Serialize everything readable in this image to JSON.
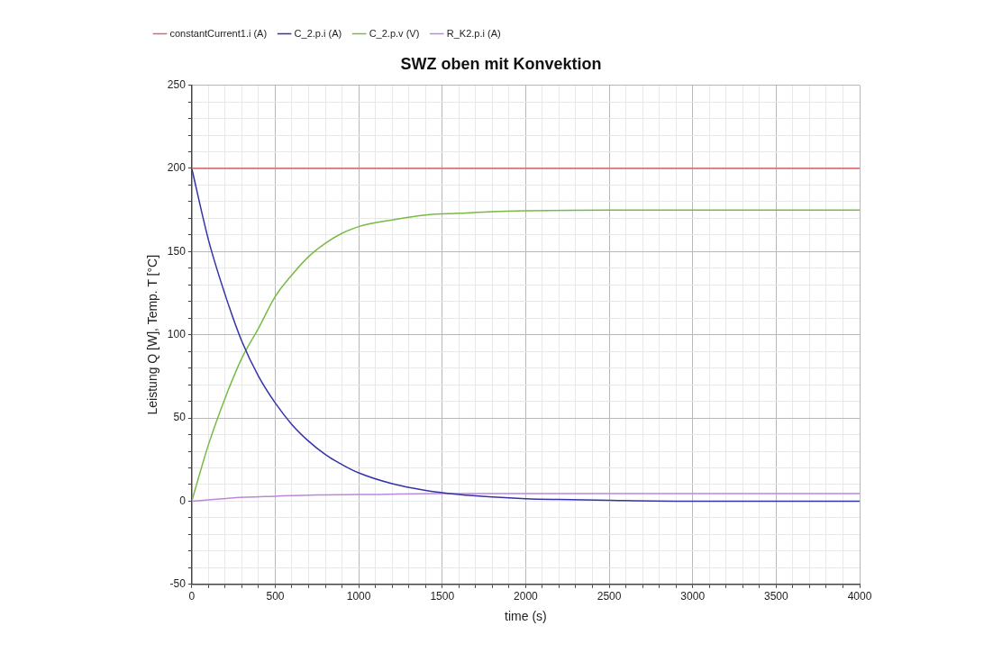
{
  "chart_data": {
    "type": "line",
    "title": "SWZ oben mit Konvektion",
    "xlabel": "time (s)",
    "ylabel": "Leistung Q [W], Temp. T [°C]",
    "legend": "top",
    "grid": true,
    "marker": "none",
    "line_style": "solid",
    "xlim": [
      0,
      4000
    ],
    "ylim": [
      -50,
      250
    ],
    "xticks": [
      0,
      {
        "value": 100,
        "label": null
      },
      {
        "value": 200,
        "label": null
      },
      {
        "value": 300,
        "label": null
      },
      {
        "value": 400,
        "label": null
      },
      500,
      {
        "value": 600,
        "label": null
      },
      {
        "value": 700,
        "label": null
      },
      {
        "value": 800,
        "label": null
      },
      {
        "value": 900,
        "label": null
      },
      1000,
      {
        "value": 1100,
        "label": null
      },
      {
        "value": 1200,
        "label": null
      },
      {
        "value": 1300,
        "label": null
      },
      {
        "value": 1400,
        "label": null
      },
      1500,
      {
        "value": 1600,
        "label": null
      },
      {
        "value": 1700,
        "label": null
      },
      {
        "value": 1800,
        "label": null
      },
      {
        "value": 1900,
        "label": null
      },
      2000,
      {
        "value": 2100,
        "label": null
      },
      {
        "value": 2200,
        "label": null
      },
      {
        "value": 2300,
        "label": null
      },
      {
        "value": 2400,
        "label": null
      },
      2500,
      {
        "value": 2600,
        "label": null
      },
      {
        "value": 2700,
        "label": null
      },
      {
        "value": 2800,
        "label": null
      },
      {
        "value": 2900,
        "label": null
      },
      3000,
      {
        "value": 3100,
        "label": null
      },
      {
        "value": 3200,
        "label": null
      },
      {
        "value": 3300,
        "label": null
      },
      {
        "value": 3400,
        "label": null
      },
      3500,
      {
        "value": 3600,
        "label": null
      },
      {
        "value": 3700,
        "label": null
      },
      {
        "value": 3800,
        "label": null
      },
      {
        "value": 3900,
        "label": null
      },
      4000
    ],
    "yticks": [
      -50,
      {
        "value": -40,
        "label": null
      },
      {
        "value": -30,
        "label": null
      },
      {
        "value": -20,
        "label": null
      },
      {
        "value": -10,
        "label": null
      },
      0,
      {
        "value": 10,
        "label": null
      },
      {
        "value": 20,
        "label": null
      },
      {
        "value": 30,
        "label": null
      },
      {
        "value": 40,
        "label": null
      },
      50,
      {
        "value": 60,
        "label": null
      },
      {
        "value": 70,
        "label": null
      },
      {
        "value": 80,
        "label": null
      },
      {
        "value": 90,
        "label": null
      },
      100,
      {
        "value": 110,
        "label": null
      },
      {
        "value": 120,
        "label": null
      },
      {
        "value": 130,
        "label": null
      },
      {
        "value": 140,
        "label": null
      },
      150,
      {
        "value": 160,
        "label": null
      },
      {
        "value": 170,
        "label": null
      },
      {
        "value": 180,
        "label": null
      },
      {
        "value": 190,
        "label": null
      },
      200,
      {
        "value": 210,
        "label": null
      },
      {
        "value": 220,
        "label": null
      },
      {
        "value": 230,
        "label": null
      },
      {
        "value": 240,
        "label": null
      },
      250
    ],
    "series": [
      {
        "name": "constantCurrent1.i (A)",
        "color": "#e06666",
        "x": [
          0,
          4000
        ],
        "values": [
          200,
          200
        ]
      },
      {
        "name": "C_2.p.i (A)",
        "color": "#3333aa",
        "x": [
          0,
          100,
          200,
          300,
          400,
          500,
          600,
          700,
          800,
          900,
          1000,
          1200,
          1400,
          1600,
          1800,
          2000,
          2200,
          2500,
          3000,
          4000
        ],
        "values": [
          200,
          157,
          124,
          96,
          75,
          59,
          46,
          36,
          28,
          22,
          17,
          10.5,
          6.5,
          4,
          2.5,
          1.5,
          1,
          0.5,
          0,
          0
        ]
      },
      {
        "name": "C_2.p.v (V)",
        "color": "#77bb44",
        "x": [
          0,
          100,
          200,
          300,
          400,
          500,
          600,
          700,
          800,
          900,
          1000,
          1200,
          1400,
          1600,
          1800,
          2000,
          2500,
          4000
        ],
        "values": [
          0,
          34,
          62,
          86,
          104,
          123,
          136,
          147,
          155,
          161,
          165,
          169,
          172,
          173,
          174,
          174.5,
          175,
          175
        ]
      },
      {
        "name": "R_K2.p.i (A)",
        "color": "#bb88dd",
        "x": [
          0,
          250,
          500,
          750,
          1000,
          1500,
          2000,
          4000
        ],
        "values": [
          0,
          2,
          3,
          3.8,
          4,
          4.5,
          4.5,
          4.5
        ]
      }
    ]
  }
}
